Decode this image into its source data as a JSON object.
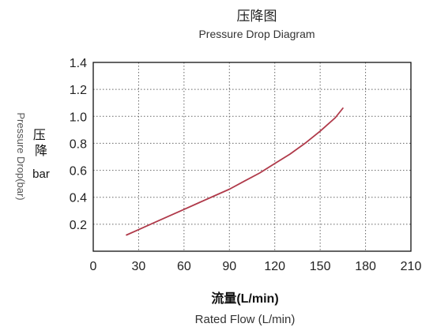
{
  "chart_data": {
    "type": "line",
    "title": "压降图",
    "subtitle": "Pressure Drop Diagram",
    "xlabel": "流量(L/min)",
    "xlabel_en": "Rated Flow (L/min)",
    "ylabel": "Pressure Drop(bar)",
    "ylabel_cn": "压降",
    "ylabel_unit": "bar",
    "xlim": [
      0,
      210
    ],
    "ylim": [
      0,
      1.4
    ],
    "xticks": [
      "0",
      "30",
      "60",
      "90",
      "120",
      "150",
      "180",
      "210"
    ],
    "yticks": [
      "0.2",
      "0.4",
      "0.6",
      "0.8",
      "1.0",
      "1.2",
      "1.4"
    ],
    "grid": true,
    "grid_style": "dotted",
    "series": [
      {
        "color": "#b03a4a",
        "x": [
          22,
          30,
          40,
          50,
          60,
          70,
          80,
          90,
          100,
          110,
          120,
          130,
          140,
          150,
          160,
          165
        ],
        "y": [
          0.12,
          0.16,
          0.21,
          0.26,
          0.31,
          0.36,
          0.41,
          0.46,
          0.52,
          0.58,
          0.65,
          0.72,
          0.8,
          0.89,
          0.99,
          1.06
        ]
      }
    ]
  }
}
